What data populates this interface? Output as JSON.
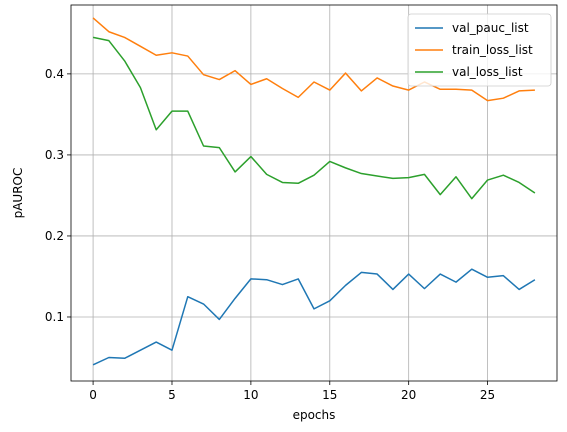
{
  "chart_data": {
    "type": "line",
    "title": "",
    "xlabel": "epochs",
    "ylabel": "pAUROC",
    "xlim": [
      -1.4,
      29.4
    ],
    "ylim": [
      0.021,
      0.485
    ],
    "x_ticks": [
      0,
      5,
      10,
      15,
      20,
      25
    ],
    "x_tick_labels": [
      "0",
      "5",
      "10",
      "15",
      "20",
      "25"
    ],
    "y_ticks": [
      0.1,
      0.2,
      0.3,
      0.4
    ],
    "y_tick_labels": [
      "0.1",
      "0.2",
      "0.3",
      "0.4"
    ],
    "grid": true,
    "legend_position": "top-right",
    "x": [
      0,
      1,
      2,
      3,
      4,
      5,
      6,
      7,
      8,
      9,
      10,
      11,
      12,
      13,
      14,
      15,
      16,
      17,
      18,
      19,
      20,
      21,
      22,
      23,
      24,
      25,
      26,
      27,
      28
    ],
    "series": [
      {
        "name": "val_pauc_list",
        "color": "#1f77b4",
        "values": [
          0.041,
          0.05,
          0.049,
          0.059,
          0.069,
          0.059,
          0.125,
          0.116,
          0.097,
          0.123,
          0.147,
          0.146,
          0.14,
          0.147,
          0.11,
          0.12,
          0.139,
          0.155,
          0.153,
          0.134,
          0.153,
          0.135,
          0.153,
          0.143,
          0.159,
          0.149,
          0.151,
          0.134,
          0.146
        ]
      },
      {
        "name": "train_loss_list",
        "color": "#ff7f0e",
        "values": [
          0.469,
          0.452,
          0.445,
          0.434,
          0.423,
          0.426,
          0.422,
          0.399,
          0.393,
          0.404,
          0.387,
          0.394,
          0.382,
          0.371,
          0.39,
          0.38,
          0.401,
          0.379,
          0.395,
          0.385,
          0.38,
          0.39,
          0.381,
          0.381,
          0.38,
          0.367,
          0.37,
          0.379,
          0.38
        ]
      },
      {
        "name": "val_loss_list",
        "color": "#2ca02c",
        "values": [
          0.445,
          0.441,
          0.416,
          0.383,
          0.331,
          0.354,
          0.354,
          0.311,
          0.309,
          0.279,
          0.298,
          0.276,
          0.266,
          0.265,
          0.275,
          0.292,
          0.284,
          0.277,
          0.274,
          0.271,
          0.272,
          0.276,
          0.251,
          0.273,
          0.246,
          0.269,
          0.275,
          0.266,
          0.253
        ]
      }
    ]
  }
}
